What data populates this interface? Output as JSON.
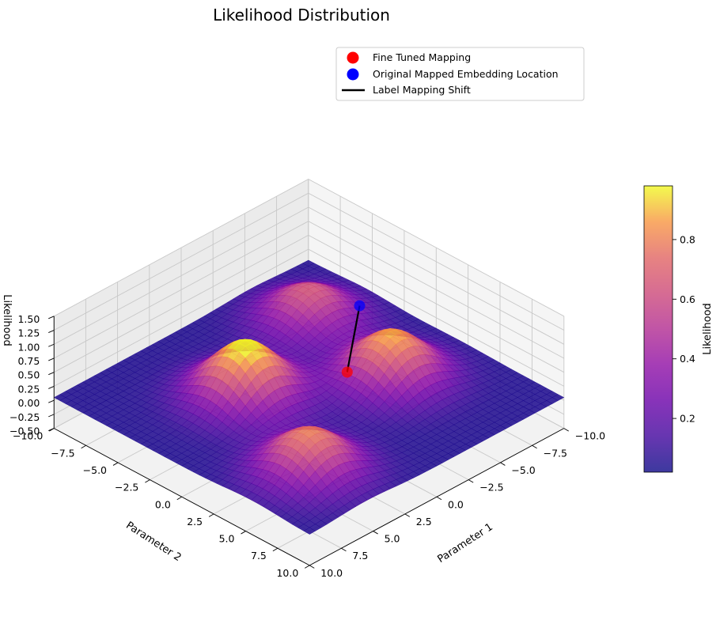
{
  "chart_data": {
    "type": "surface3d",
    "title": "Likelihood Distribution",
    "xlabel": "Parameter 1",
    "ylabel": "Parameter 2",
    "zlabel": "Likelihood",
    "xlim": [
      -10,
      10
    ],
    "ylim": [
      -10,
      10
    ],
    "zlim": [
      -0.5,
      1.5
    ],
    "x_ticks": [
      "−10.0",
      "−7.5",
      "−5.0",
      "−2.5",
      "0.0",
      "2.5",
      "5.0",
      "7.5",
      "10.0"
    ],
    "y_ticks": [
      "−10.0",
      "−7.5",
      "−5.0",
      "−2.5",
      "0.0",
      "2.5",
      "5.0",
      "7.5",
      "10.0"
    ],
    "z_ticks": [
      "−0.50",
      "−0.25",
      "0.00",
      "0.25",
      "0.50",
      "0.75",
      "1.00",
      "1.25",
      "1.50"
    ],
    "colormap": "plasma",
    "surface_alpha": 0.8,
    "surface_peaks": [
      {
        "x": 2.5,
        "y": -2.5,
        "height": 0.98
      },
      {
        "x": -4.5,
        "y": 2.0,
        "height": 0.85
      },
      {
        "x": 5.5,
        "y": 5.5,
        "height": 0.75
      },
      {
        "x": -5.5,
        "y": -5.5,
        "height": 0.6
      }
    ],
    "colorbar": {
      "label": "Likelihood",
      "ticks": [
        "0.2",
        "0.4",
        "0.6",
        "0.8"
      ],
      "range": [
        0.02,
        0.98
      ]
    },
    "legend": {
      "placement": "upper-right",
      "entries": [
        {
          "label": "Fine Tuned Mapping",
          "marker": "circle",
          "color": "#ff0000"
        },
        {
          "label": "Original Mapped Embedding Location",
          "marker": "circle",
          "color": "#0000ff"
        },
        {
          "label": "Label Mapping Shift",
          "marker": "line",
          "color": "#000000"
        }
      ]
    },
    "points": [
      {
        "series": "Fine Tuned Mapping",
        "x": -2.0,
        "y": 1.0,
        "z": 0.38,
        "color": "#ff0000"
      },
      {
        "series": "Original Mapped Embedding Location",
        "x": -8.0,
        "y": -4.0,
        "z": 0.22,
        "color": "#0000ff"
      }
    ],
    "shift_line": {
      "from": [
        -8.0,
        -4.0,
        0.22
      ],
      "to": [
        -2.0,
        1.0,
        0.38
      ],
      "color": "#000000"
    }
  }
}
